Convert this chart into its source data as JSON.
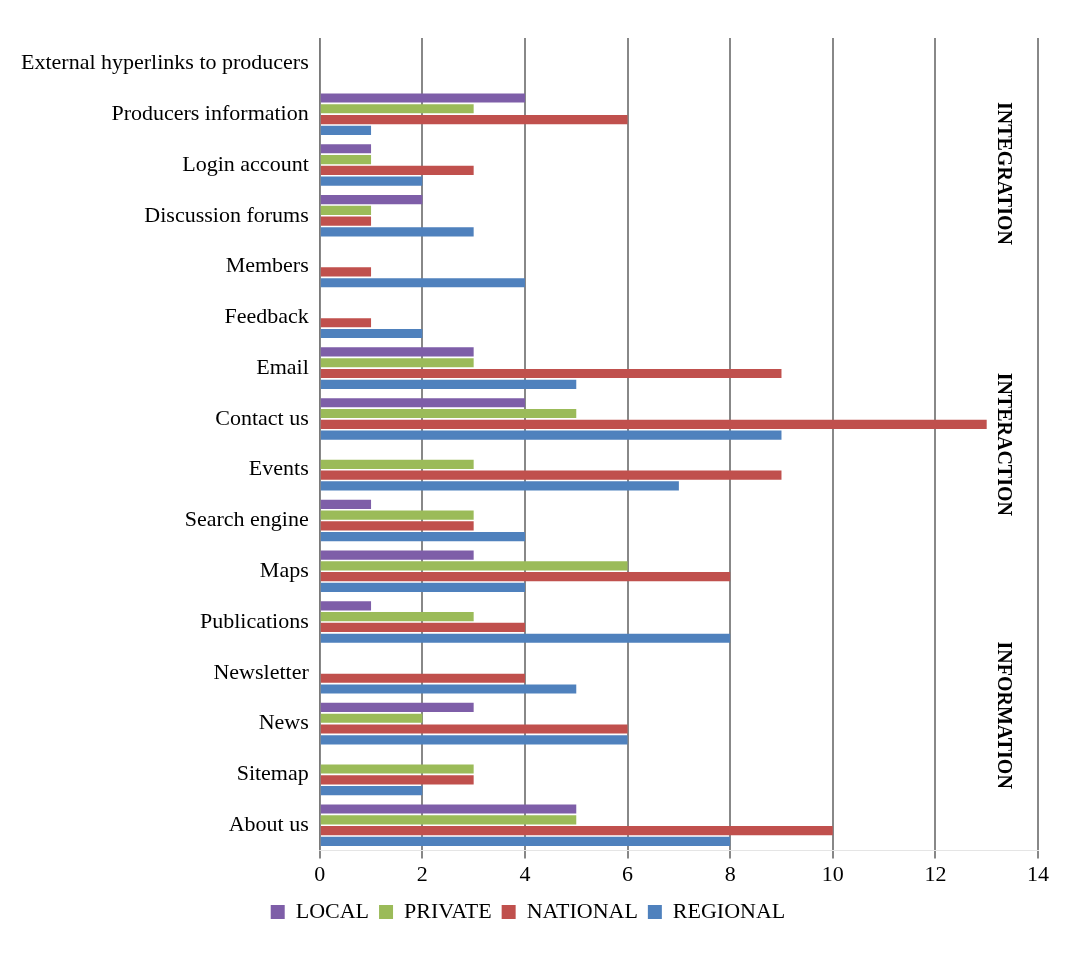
{
  "chart_data": {
    "type": "bar",
    "orientation": "horizontal",
    "categories": [
      "External hyperlinks to producers",
      "Producers information",
      "Login account",
      "Discussion forums",
      "Members",
      "Feedback",
      "Email",
      "Contact us",
      "Events",
      "Search engine",
      "Maps",
      "Publications",
      "Newsletter",
      "News",
      "Sitemap",
      "About us"
    ],
    "series": [
      {
        "name": "LOCAL",
        "color": "#7e5ea8",
        "values": [
          0,
          4,
          1,
          2,
          0,
          0,
          3,
          4,
          0,
          1,
          3,
          1,
          0,
          3,
          0,
          5
        ]
      },
      {
        "name": "PRIVATE",
        "color": "#9bbb59",
        "values": [
          0,
          3,
          1,
          1,
          0,
          0,
          3,
          5,
          3,
          3,
          6,
          3,
          0,
          2,
          3,
          5
        ]
      },
      {
        "name": "NATIONAL",
        "color": "#c0504d",
        "values": [
          0,
          6,
          3,
          1,
          1,
          1,
          9,
          13,
          9,
          3,
          8,
          4,
          4,
          6,
          3,
          10
        ]
      },
      {
        "name": "REGIONAL",
        "color": "#4f81bd",
        "values": [
          0,
          1,
          2,
          3,
          4,
          2,
          5,
          9,
          7,
          4,
          4,
          8,
          5,
          6,
          2,
          8
        ]
      }
    ],
    "xlim": [
      0,
      14
    ],
    "xticks": [
      0,
      2,
      4,
      6,
      8,
      10,
      12,
      14
    ],
    "grid": "x",
    "legend": "bottom",
    "annotations": [
      "INTEGRATION",
      "INTERACTION",
      "INFORMATION"
    ]
  }
}
